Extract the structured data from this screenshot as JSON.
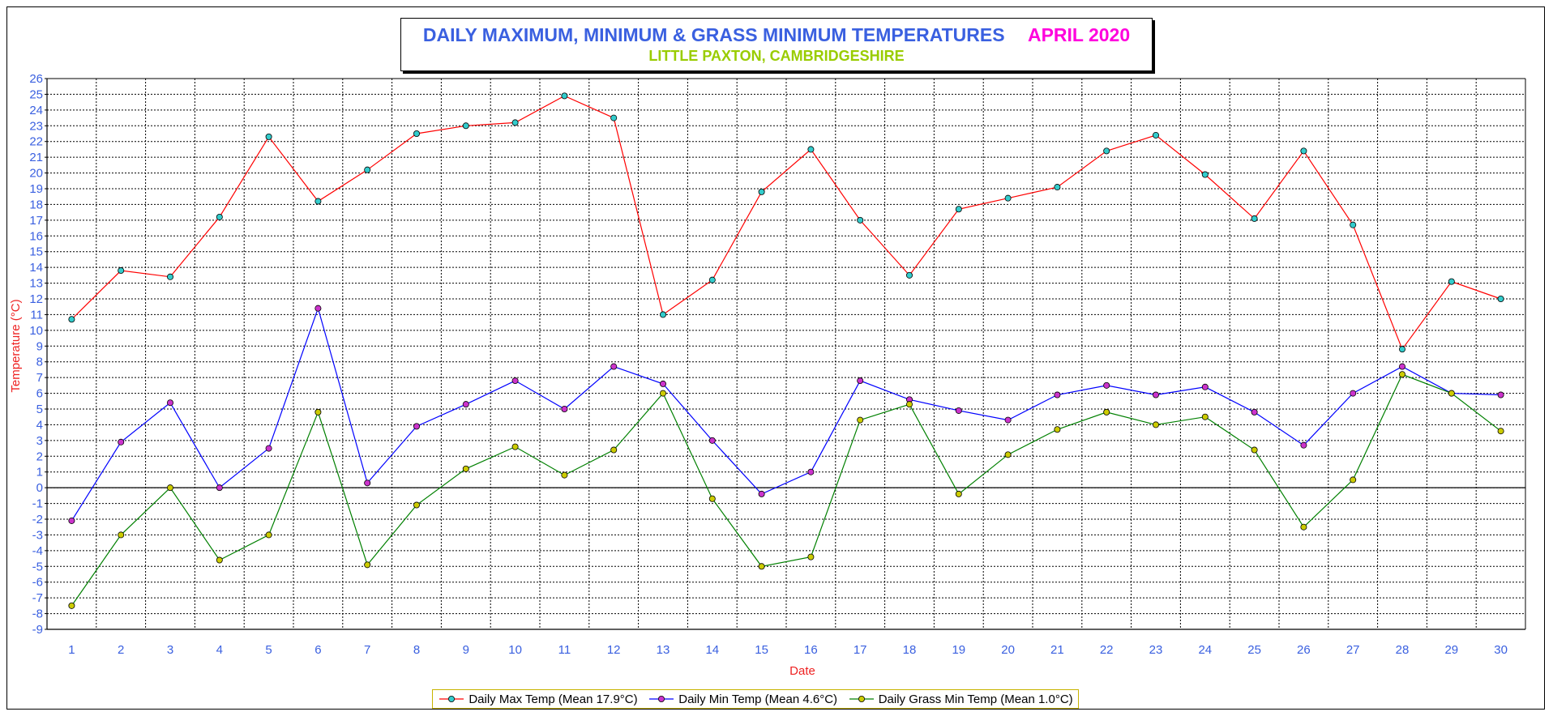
{
  "title": {
    "main": "DAILY MAXIMUM, MINIMUM & GRASS MINIMUM TEMPERATURES",
    "month": "APRIL 2020",
    "subtitle": "LITTLE PAXTON, CAMBRIDGESHIRE"
  },
  "colors": {
    "title_main": "#3a60e0",
    "title_month": "#ff00dd",
    "subtitle": "#99cc00",
    "tick_labels": "#3a60e0",
    "axis_titles": "#ee2222"
  },
  "chart_data": {
    "type": "line",
    "xlabel": "Date",
    "ylabel": "Temperature (°C)",
    "x": [
      1,
      2,
      3,
      4,
      5,
      6,
      7,
      8,
      9,
      10,
      11,
      12,
      13,
      14,
      15,
      16,
      17,
      18,
      19,
      20,
      21,
      22,
      23,
      24,
      25,
      26,
      27,
      28,
      29,
      30
    ],
    "ylim": [
      -9,
      26
    ],
    "yticks": [
      26,
      25,
      24,
      23,
      22,
      21,
      20,
      19,
      18,
      17,
      16,
      15,
      14,
      13,
      12,
      11,
      10,
      9,
      8,
      7,
      6,
      5,
      4,
      3,
      2,
      1,
      0,
      -1,
      -2,
      -3,
      -4,
      -5,
      -6,
      -7,
      -8,
      -9
    ],
    "grid": true,
    "legend_position": "bottom",
    "series": [
      {
        "name": "Daily Max Temp (Mean 17.9°C)",
        "line_color": "#ff0000",
        "marker_color": "#33cccc",
        "values": [
          10.7,
          13.8,
          13.4,
          17.2,
          22.3,
          18.2,
          20.2,
          22.5,
          23.0,
          23.2,
          24.9,
          23.5,
          11.0,
          13.2,
          18.8,
          21.5,
          17.0,
          13.5,
          17.7,
          18.4,
          19.1,
          21.4,
          22.4,
          19.9,
          17.1,
          21.4,
          16.7,
          8.8,
          13.1,
          12.0
        ]
      },
      {
        "name": "Daily Min Temp (Mean 4.6°C)",
        "line_color": "#0000ff",
        "marker_color": "#cc33cc",
        "values": [
          -2.1,
          2.9,
          5.4,
          0.0,
          2.5,
          11.4,
          0.3,
          3.9,
          5.3,
          6.8,
          5.0,
          7.7,
          6.6,
          3.0,
          -0.4,
          1.0,
          6.8,
          5.6,
          4.9,
          4.3,
          5.9,
          6.5,
          5.9,
          6.4,
          4.8,
          2.7,
          6.0,
          7.7,
          6.0,
          5.9
        ]
      },
      {
        "name": "Daily Grass Min Temp (Mean 1.0°C)",
        "line_color": "#008000",
        "marker_color": "#cccc00",
        "values": [
          -7.5,
          -3.0,
          0.0,
          -4.6,
          -3.0,
          4.8,
          -4.9,
          -1.1,
          1.2,
          2.6,
          0.8,
          2.4,
          6.0,
          -0.7,
          -5.0,
          -4.4,
          4.3,
          5.3,
          -0.4,
          2.1,
          3.7,
          4.8,
          4.0,
          4.5,
          2.4,
          -2.5,
          0.5,
          7.2,
          6.0,
          3.6
        ]
      }
    ]
  }
}
